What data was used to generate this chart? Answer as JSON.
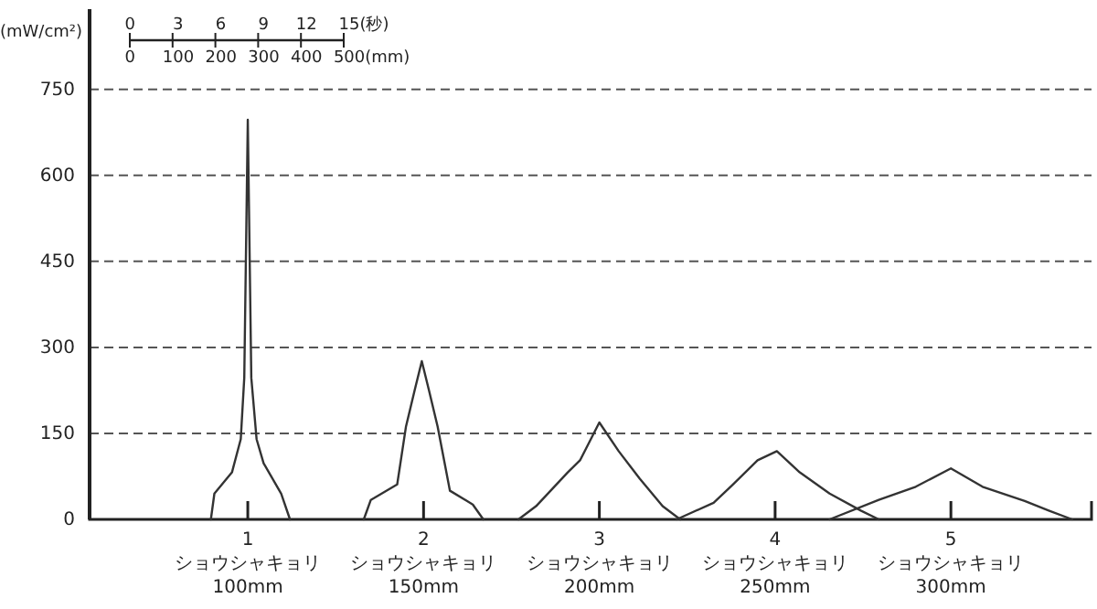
{
  "chart_data": {
    "type": "line",
    "ylabel": "(mW/cm²)",
    "xlim": [
      0.1,
      5.8
    ],
    "ylim": [
      0,
      890
    ],
    "xticks": [
      1,
      2,
      3,
      4,
      5
    ],
    "yticks": [
      0,
      150,
      300,
      450,
      600,
      750
    ],
    "grid": "y",
    "marker": "none",
    "line_style": "solid",
    "annotations": [
      "0 3 6 9 12 15(秒)",
      "0 100 200 300 400 500(mm)",
      "ショウシャキョリ\n100mm",
      "ショウシャキョリ\n150mm",
      "ショウシャキョリ\n200mm",
      "ショウシャキョリ\n250mm",
      "ショウシャキョリ\n300mm"
    ],
    "series": [
      {
        "color": "#333333",
        "x": [
          0.79,
          0.81,
          0.91,
          0.96,
          0.98,
          1.0,
          1.02,
          1.05,
          1.09,
          1.19,
          1.24
        ],
        "values": [
          0,
          45,
          82,
          140,
          247,
          697,
          247,
          140,
          98,
          45,
          0
        ]
      },
      {
        "color": "#333333",
        "x": [
          1.66,
          1.7,
          1.85,
          1.9,
          1.95,
          1.99,
          2.03,
          2.08,
          2.15,
          2.28,
          2.34
        ],
        "values": [
          0,
          34,
          61,
          162,
          226,
          276,
          226,
          162,
          50,
          26,
          0
        ]
      },
      {
        "color": "#333333",
        "x": [
          2.54,
          2.64,
          2.82,
          2.89,
          3.0,
          3.11,
          3.23,
          3.36,
          3.46
        ],
        "values": [
          0,
          23,
          82,
          103,
          169,
          119,
          71,
          23,
          0
        ]
      },
      {
        "color": "#333333",
        "x": [
          3.44,
          3.65,
          3.76,
          3.9,
          4.01,
          4.14,
          4.31,
          4.49,
          4.59
        ],
        "values": [
          0,
          29,
          61,
          103,
          119,
          82,
          45,
          15,
          0
        ]
      },
      {
        "color": "#333333",
        "x": [
          4.31,
          4.59,
          4.8,
          5.0,
          5.18,
          5.42,
          5.56,
          5.69
        ],
        "values": [
          0,
          34,
          57,
          89,
          57,
          32,
          15,
          0
        ]
      }
    ]
  }
}
